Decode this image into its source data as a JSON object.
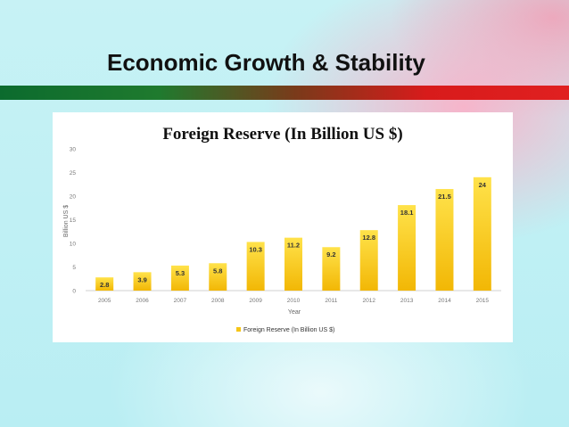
{
  "slide": {
    "title": "Economic Growth & Stability"
  },
  "colors": {
    "bar_top": "#ffe24a",
    "bar_bottom": "#f2b705",
    "band_green": "#0c6b2e",
    "band_red": "#e02020"
  },
  "chart_data": {
    "type": "bar",
    "title": "Foreign Reserve (In Billion US $)",
    "xlabel": "Year",
    "ylabel": "Billion US $",
    "categories": [
      "2005",
      "2006",
      "2007",
      "2008",
      "2009",
      "2010",
      "2011",
      "2012",
      "2013",
      "2014",
      "2015"
    ],
    "series": [
      {
        "name": "Foreign Reserve (In Billion US $)",
        "values": [
          2.8,
          3.9,
          5.3,
          5.8,
          10.3,
          11.2,
          9.2,
          12.8,
          18.1,
          21.5,
          24
        ]
      }
    ],
    "data_labels": [
      "2.8",
      "3.9",
      "5.3",
      "5.8",
      "10.3",
      "11.2",
      "9.2",
      "12.8",
      "18.1",
      "21.5",
      "24"
    ],
    "y_ticks": [
      "0",
      "5",
      "10",
      "15",
      "20",
      "25",
      "30"
    ],
    "ylim": [
      0,
      30
    ],
    "grid": false,
    "legend_position": "bottom"
  }
}
